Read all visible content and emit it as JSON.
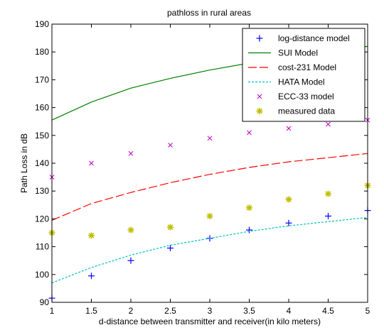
{
  "chart_data": {
    "type": "line",
    "title": "pathloss in rural  areas",
    "xlabel": "d-distance between transmitter and receiver(in kilo meters)",
    "ylabel": "Path Loss in dB",
    "xlim": [
      1,
      5
    ],
    "ylim": [
      90,
      190
    ],
    "x_ticks": [
      "1",
      "1.5",
      "2",
      "2.5",
      "3",
      "3.5",
      "4",
      "4.5",
      "5"
    ],
    "y_ticks": [
      "90",
      "100",
      "110",
      "120",
      "130",
      "140",
      "150",
      "160",
      "170",
      "180",
      "190"
    ],
    "grid": false,
    "legend_position": "top-right",
    "series": [
      {
        "name": "log-distance model",
        "style": "marker-plus",
        "color": "#0000ff",
        "x": [
          1,
          1.5,
          2,
          2.5,
          3,
          3.5,
          4,
          4.5,
          5
        ],
        "values": [
          91.5,
          99.5,
          105,
          109.5,
          113,
          116,
          118.5,
          121,
          123
        ]
      },
      {
        "name": "SUI Model",
        "style": "line-solid",
        "color": "#008000",
        "x": [
          1,
          1.5,
          2,
          2.5,
          3,
          3.5,
          4,
          4.5,
          5
        ],
        "values": [
          155.5,
          162,
          167,
          170.5,
          173.5,
          176,
          178.5,
          180.5,
          182
        ]
      },
      {
        "name": "cost-231 Model",
        "style": "line-dash",
        "color": "#ff0000",
        "x": [
          1,
          1.5,
          2,
          2.5,
          3,
          3.5,
          4,
          4.5,
          5
        ],
        "values": [
          119.5,
          125.5,
          129.5,
          133,
          136,
          138.5,
          140.5,
          142,
          143.5
        ]
      },
      {
        "name": "HATA Model",
        "style": "line-dot",
        "color": "#00bfbf",
        "x": [
          1,
          1.5,
          2,
          2.5,
          3,
          3.5,
          4,
          4.5,
          5
        ],
        "values": [
          97,
          102.5,
          107,
          110.5,
          113,
          115.5,
          117.5,
          119,
          120.5
        ]
      },
      {
        "name": "ECC-33 model",
        "style": "marker-x",
        "color": "#bf00bf",
        "x": [
          1,
          1.5,
          2,
          2.5,
          3,
          3.5,
          4,
          4.5,
          5
        ],
        "values": [
          135,
          140,
          143.5,
          146.5,
          149,
          151,
          152.5,
          154,
          155.5
        ]
      },
      {
        "name": "measured data",
        "style": "marker-star",
        "color": "#bfbf00",
        "x": [
          1,
          1.5,
          2,
          2.5,
          3,
          3.5,
          4,
          4.5,
          5
        ],
        "values": [
          115,
          114,
          116,
          117,
          121,
          124,
          127,
          129,
          132
        ]
      }
    ]
  }
}
